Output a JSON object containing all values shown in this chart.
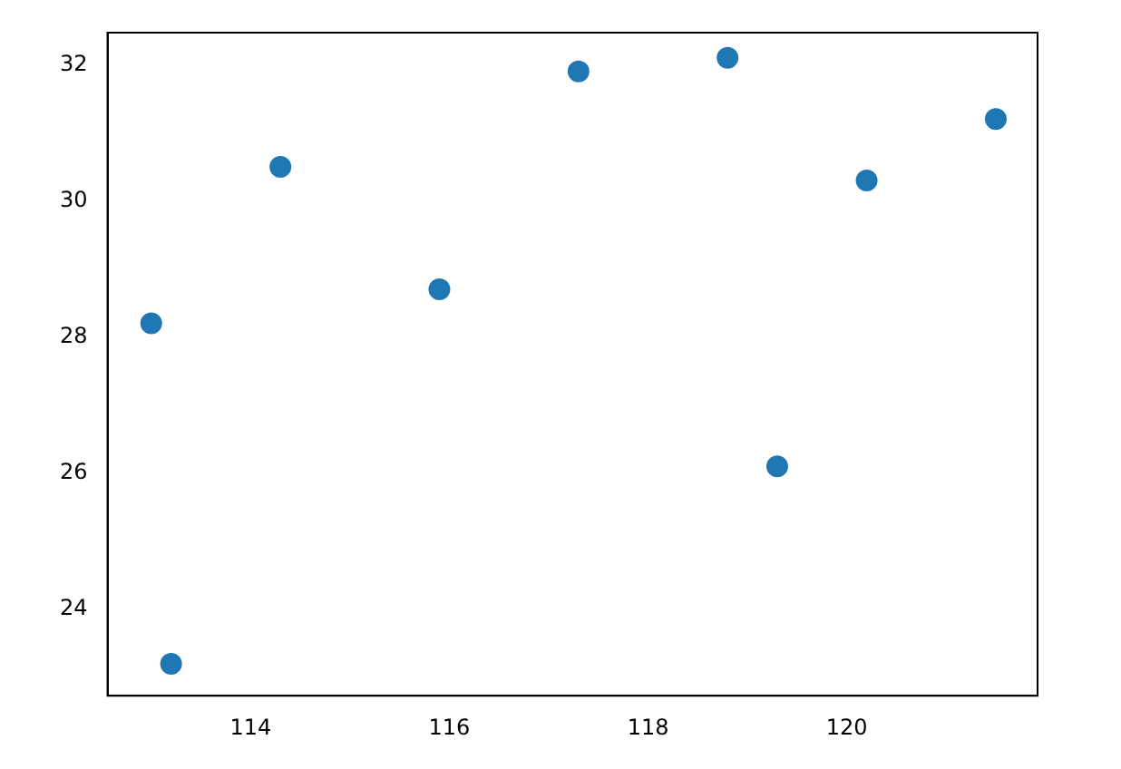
{
  "chart_data": {
    "type": "scatter",
    "x": [
      113.0,
      113.2,
      114.3,
      115.9,
      117.3,
      118.8,
      119.3,
      120.2,
      121.5
    ],
    "values": [
      28.2,
      23.2,
      30.5,
      28.7,
      31.9,
      32.1,
      26.1,
      30.3,
      31.2
    ],
    "color": "#1f77b4",
    "xlim": [
      112.56,
      121.92
    ],
    "ylim": [
      22.73,
      32.47
    ],
    "xticks": [
      114,
      116,
      118,
      120
    ],
    "yticks": [
      24,
      26,
      28,
      30,
      32
    ],
    "marker": "circle",
    "grid": false,
    "legend": false
  }
}
